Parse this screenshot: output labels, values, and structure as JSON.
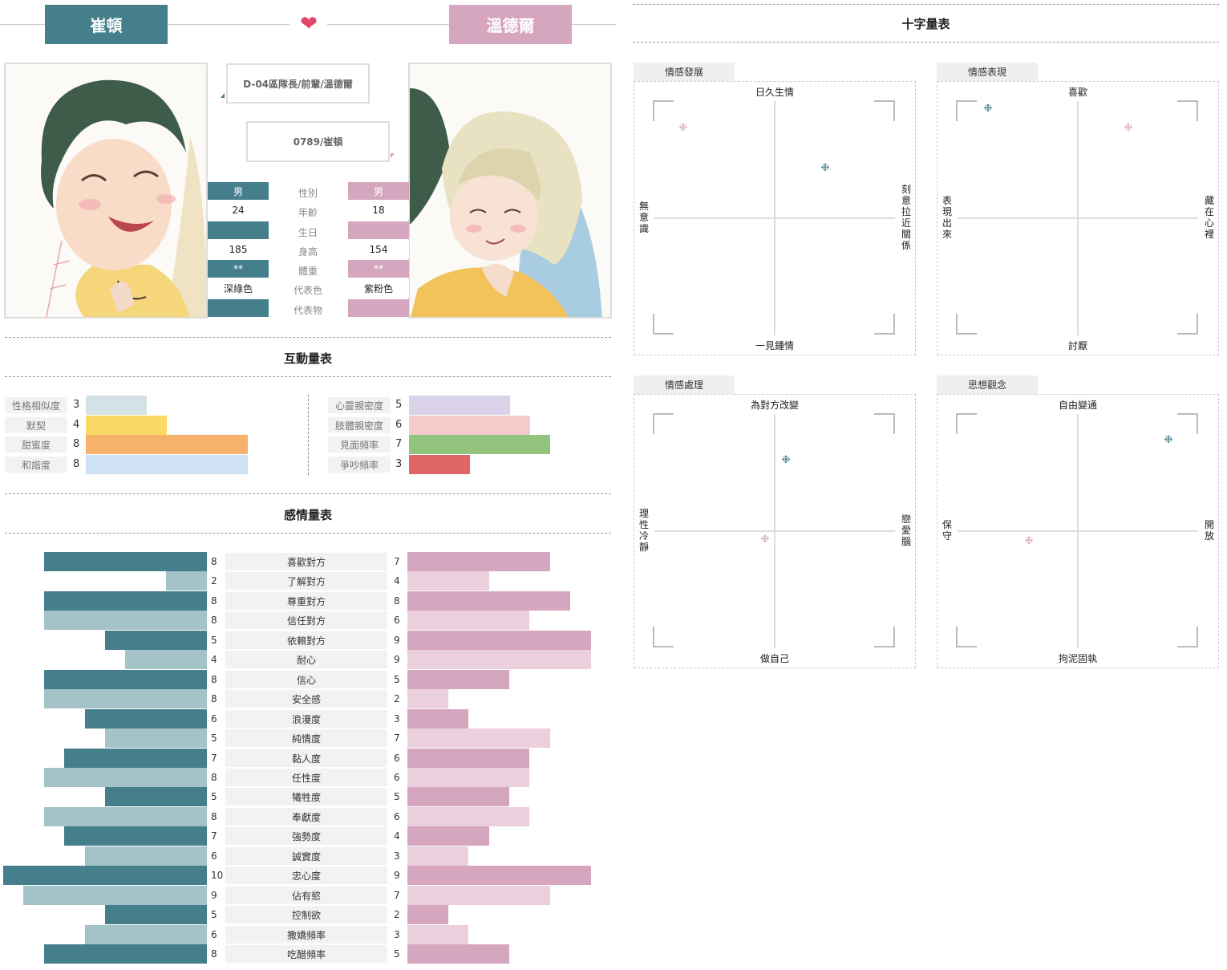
{
  "header": {
    "left_name": "崔頓",
    "right_name": "溫德爾",
    "heart": "❤",
    "left_tag": "D-04區隊長/前輩/溫德爾",
    "right_tag": "0789/崔頓"
  },
  "colors": {
    "left_dark": "#457f8c",
    "left_light": "#a3c3c8",
    "right_dark": "#d6a6bf",
    "right_light": "#ebcfdc",
    "heart": "#e0486a"
  },
  "profile": {
    "rows": [
      {
        "label": "性別",
        "left": "男",
        "right": "男"
      },
      {
        "label": "年齡",
        "left": "24",
        "right": "18"
      },
      {
        "label": "生日",
        "left": "",
        "right": ""
      },
      {
        "label": "身高",
        "left": "185",
        "right": "154"
      },
      {
        "label": "體重",
        "left": "**",
        "right": "**"
      },
      {
        "label": "代表色",
        "left": "深綠色",
        "right": "紫粉色"
      },
      {
        "label": "代表物",
        "left": "",
        "right": ""
      }
    ]
  },
  "interaction": {
    "title": "互動量表",
    "left": [
      {
        "label": "性格相似度",
        "value": 3,
        "color": "#d4e2e5"
      },
      {
        "label": "默契",
        "value": 4,
        "color": "#fcd966"
      },
      {
        "label": "甜蜜度",
        "value": 8,
        "color": "#f6b26b"
      },
      {
        "label": "和諧度",
        "value": 8,
        "color": "#cfe2f3"
      }
    ],
    "right": [
      {
        "label": "心靈親密度",
        "value": 5,
        "color": "#d9d2e9"
      },
      {
        "label": "肢體親密度",
        "value": 6,
        "color": "#f4cccc"
      },
      {
        "label": "見面頻率",
        "value": 7,
        "color": "#93c47d"
      },
      {
        "label": "爭吵頻率",
        "value": 3,
        "color": "#e06666"
      }
    ]
  },
  "emotion": {
    "title": "感情量表",
    "rows": [
      {
        "label": "喜歡對方",
        "left": 8,
        "right": 7
      },
      {
        "label": "了解對方",
        "left": 2,
        "right": 4
      },
      {
        "label": "尊重對方",
        "left": 8,
        "right": 8
      },
      {
        "label": "信任對方",
        "left": 8,
        "right": 6
      },
      {
        "label": "依賴對方",
        "left": 5,
        "right": 9
      },
      {
        "label": "耐心",
        "left": 4,
        "right": 9
      },
      {
        "label": "信心",
        "left": 8,
        "right": 5
      },
      {
        "label": "安全感",
        "left": 8,
        "right": 2
      },
      {
        "label": "浪漫度",
        "left": 6,
        "right": 3
      },
      {
        "label": "純情度",
        "left": 5,
        "right": 7
      },
      {
        "label": "黏人度",
        "left": 7,
        "right": 6
      },
      {
        "label": "任性度",
        "left": 8,
        "right": 6
      },
      {
        "label": "犧牲度",
        "left": 5,
        "right": 5
      },
      {
        "label": "奉獻度",
        "left": 8,
        "right": 6
      },
      {
        "label": "強勢度",
        "left": 7,
        "right": 4
      },
      {
        "label": "誠實度",
        "left": 6,
        "right": 3
      },
      {
        "label": "忠心度",
        "left": 10,
        "right": 9
      },
      {
        "label": "佔有慾",
        "left": 9,
        "right": 7
      },
      {
        "label": "控制欲",
        "left": 5,
        "right": 2
      },
      {
        "label": "撒嬌頻率",
        "left": 6,
        "right": 3
      },
      {
        "label": "吃醋頻率",
        "left": 8,
        "right": 5
      }
    ]
  },
  "cross": {
    "title": "十字量表",
    "star_glyph": "❉",
    "charts": [
      {
        "tab": "情感發展",
        "top": "日久生情",
        "bottom": "一見鍾情",
        "left": "無意識",
        "right": "刻意拉近關係",
        "points": [
          {
            "who": "right",
            "x": -0.76,
            "y": 0.74
          },
          {
            "who": "left",
            "x": 0.42,
            "y": 0.41
          }
        ]
      },
      {
        "tab": "情感表現",
        "top": "喜歡",
        "bottom": "討厭",
        "left": "表現出來",
        "right": "藏在心裡",
        "points": [
          {
            "who": "left",
            "x": -0.75,
            "y": 0.9
          },
          {
            "who": "right",
            "x": 0.42,
            "y": 0.74
          }
        ]
      },
      {
        "tab": "情感處理",
        "top": "為對方改變",
        "bottom": "做自己",
        "left": "理性冷靜",
        "right": "戀愛腦",
        "points": [
          {
            "who": "left",
            "x": 0.09,
            "y": 0.58
          },
          {
            "who": "right",
            "x": -0.08,
            "y": -0.08
          }
        ]
      },
      {
        "tab": "思想觀念",
        "top": "自由變通",
        "bottom": "拘泥固執",
        "left": "保守",
        "right": "開放",
        "points": [
          {
            "who": "left",
            "x": 0.75,
            "y": 0.75
          },
          {
            "who": "right",
            "x": -0.41,
            "y": -0.09
          }
        ]
      }
    ]
  }
}
